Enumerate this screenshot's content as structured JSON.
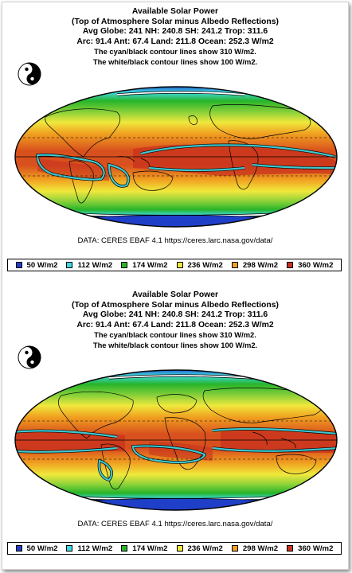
{
  "panels": [
    {
      "title": "Available Solar Power",
      "subtitle": "(Top of Atmosphere Solar minus Albedo Reflections)",
      "stats_line1": "Avg Globe: 241  NH: 240.8  SH: 241.2  Trop: 311.6",
      "stats_line2": "Arc: 91.4  Ant: 67.4  Land: 211.8 Ocean: 252.3 W/m2",
      "note_cyan": "The cyan/black contour lines show 310 W/m2.",
      "note_white": "The white/black contour lines show 100 W/m2.",
      "source": "DATA: CERES EBAF 4.1 https://ceres.larc.nasa.gov/data/",
      "map_center": "Pacific",
      "yinyang_icon": "yin-yang-icon"
    },
    {
      "title": "Available Solar Power",
      "subtitle": "(Top of Atmosphere Solar minus Albedo Reflections)",
      "stats_line1": "Avg Globe: 241  NH: 240.8  SH: 241.2  Trop: 311.6",
      "stats_line2": "Arc: 91.4  Ant: 67.4  Land: 211.8 Ocean: 252.3 W/m2",
      "note_cyan": "The cyan/black contour lines show 310 W/m2.",
      "note_white": "The white/black contour lines show 100 W/m2.",
      "source": "DATA: CERES EBAF 4.1 https://ceres.larc.nasa.gov/data/",
      "map_center": "Atlantic/Greenwich",
      "yinyang_icon": "yin-yang-icon"
    }
  ],
  "legend": [
    {
      "label": "50 W/m2",
      "color": "#1f3fc8"
    },
    {
      "label": "112 W/m2",
      "color": "#3fd8e0"
    },
    {
      "label": "174 W/m2",
      "color": "#27b42a"
    },
    {
      "label": "236 W/m2",
      "color": "#f0e83c"
    },
    {
      "label": "298 W/m2",
      "color": "#f0a020"
    },
    {
      "label": "360 W/m2",
      "color": "#c8321e"
    }
  ],
  "colors": {
    "polar": "#1f3fc8",
    "subpolar": "#3fd8e0",
    "midlat": "#27b42a",
    "subtropic": "#f0e83c",
    "tropic": "#f0a020",
    "equator": "#c8321e",
    "contour_310": "#3fc8d0",
    "contour_100": "#ffffff"
  }
}
